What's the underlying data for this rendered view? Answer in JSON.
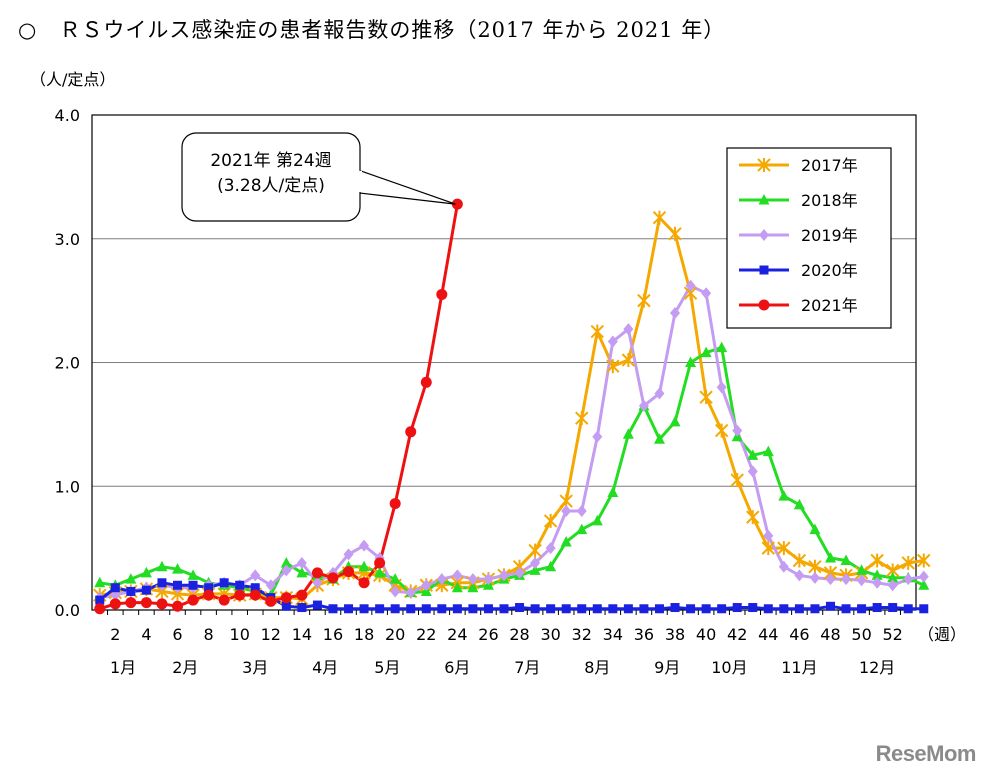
{
  "page": {
    "title": "○　ＲＳウイルス感染症の患者報告数の推移（2017 年から 2021 年）",
    "unit_label": "（人/定点）",
    "watermark": "ReseMom"
  },
  "chart_data": {
    "type": "line",
    "ylim": [
      0,
      4
    ],
    "y_ticks": [
      "0.0",
      "1.0",
      "2.0",
      "3.0",
      "4.0"
    ],
    "x_tick_labels": [
      "2",
      "4",
      "6",
      "8",
      "10",
      "12",
      "14",
      "16",
      "18",
      "20",
      "22",
      "24",
      "26",
      "28",
      "30",
      "32",
      "34",
      "36",
      "38",
      "40",
      "42",
      "44",
      "46",
      "48",
      "50",
      "52"
    ],
    "x_unit": "（週）",
    "months": [
      "1月",
      "2月",
      "3月",
      "4月",
      "5月",
      "6月",
      "7月",
      "8月",
      "9月",
      "10月",
      "11月",
      "12月"
    ],
    "callout": [
      "2021年 第24週",
      "(3.28人/定点)"
    ],
    "legend_position": "top-right",
    "series": [
      {
        "name": "2017年",
        "color": "#f5a800",
        "marker": "asterisk",
        "values": [
          0.12,
          0.14,
          0.15,
          0.17,
          0.15,
          0.13,
          0.12,
          0.13,
          0.13,
          0.12,
          0.13,
          0.1,
          0.1,
          0.09,
          0.2,
          0.25,
          0.3,
          0.3,
          0.28,
          0.2,
          0.15,
          0.2,
          0.2,
          0.22,
          0.22,
          0.25,
          0.28,
          0.35,
          0.48,
          0.72,
          0.88,
          1.55,
          2.25,
          1.97,
          2.02,
          2.5,
          3.17,
          3.04,
          2.56,
          1.72,
          1.45,
          1.05,
          0.75,
          0.5,
          0.5,
          0.4,
          0.35,
          0.3,
          0.28,
          0.3,
          0.4,
          0.32,
          0.38,
          0.4
        ]
      },
      {
        "name": "2018年",
        "color": "#22dd22",
        "marker": "triangle",
        "values": [
          0.22,
          0.2,
          0.25,
          0.3,
          0.35,
          0.33,
          0.28,
          0.22,
          0.2,
          0.18,
          0.15,
          0.12,
          0.38,
          0.3,
          0.28,
          0.25,
          0.35,
          0.35,
          0.3,
          0.25,
          0.14,
          0.15,
          0.25,
          0.18,
          0.18,
          0.2,
          0.25,
          0.28,
          0.32,
          0.35,
          0.55,
          0.65,
          0.72,
          0.95,
          1.42,
          1.65,
          1.38,
          1.52,
          2.0,
          2.08,
          2.12,
          1.4,
          1.25,
          1.28,
          0.92,
          0.85,
          0.65,
          0.42,
          0.4,
          0.32,
          0.28,
          0.26,
          0.26,
          0.2
        ]
      },
      {
        "name": "2019年",
        "color": "#c49cf2",
        "marker": "diamond",
        "values": [
          0.1,
          0.12,
          0.15,
          0.18,
          0.2,
          0.18,
          0.18,
          0.2,
          0.22,
          0.2,
          0.28,
          0.2,
          0.32,
          0.38,
          0.22,
          0.3,
          0.45,
          0.52,
          0.42,
          0.15,
          0.14,
          0.2,
          0.25,
          0.28,
          0.25,
          0.25,
          0.28,
          0.3,
          0.38,
          0.5,
          0.8,
          0.8,
          1.4,
          2.17,
          2.27,
          1.65,
          1.75,
          2.4,
          2.62,
          2.56,
          1.8,
          1.45,
          1.12,
          0.6,
          0.35,
          0.28,
          0.26,
          0.25,
          0.25,
          0.24,
          0.22,
          0.2,
          0.25,
          0.27
        ]
      },
      {
        "name": "2020年",
        "color": "#1a22e0",
        "marker": "square",
        "values": [
          0.08,
          0.18,
          0.15,
          0.16,
          0.22,
          0.2,
          0.2,
          0.18,
          0.22,
          0.2,
          0.18,
          0.1,
          0.03,
          0.02,
          0.04,
          0.01,
          0.01,
          0.01,
          0.01,
          0.01,
          0.01,
          0.01,
          0.01,
          0.01,
          0.01,
          0.01,
          0.01,
          0.02,
          0.01,
          0.01,
          0.01,
          0.01,
          0.01,
          0.01,
          0.01,
          0.01,
          0.01,
          0.02,
          0.01,
          0.01,
          0.01,
          0.02,
          0.02,
          0.01,
          0.01,
          0.01,
          0.01,
          0.03,
          0.01,
          0.01,
          0.02,
          0.02,
          0.01,
          0.01
        ]
      },
      {
        "name": "2021年",
        "color": "#ee1111",
        "marker": "circle",
        "values": [
          0.01,
          0.05,
          0.06,
          0.06,
          0.05,
          0.03,
          0.08,
          0.12,
          0.08,
          0.12,
          0.12,
          0.07,
          0.1,
          0.12,
          0.3,
          0.26,
          0.31,
          0.22,
          0.38,
          0.86,
          1.44,
          1.84,
          2.55,
          3.28
        ]
      }
    ]
  }
}
